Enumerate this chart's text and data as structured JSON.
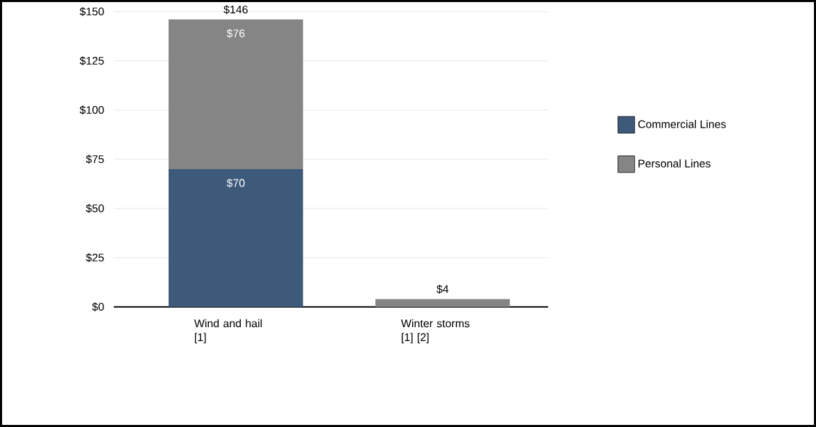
{
  "chart_data": {
    "type": "bar",
    "stacked": true,
    "categories": [
      "Wind and hail [1]",
      "Winter storms [1] [2]"
    ],
    "series": [
      {
        "name": "Commercial Lines",
        "color": "#3e5a7b",
        "values": [
          70,
          null
        ],
        "value_labels": [
          "$70",
          null
        ]
      },
      {
        "name": "Personal Lines",
        "color": "#858585",
        "values": [
          76,
          4
        ],
        "value_labels": [
          "$76",
          null
        ]
      }
    ],
    "totals": [
      "$146",
      "$4"
    ],
    "ylim": [
      0,
      150
    ],
    "yticks": [
      {
        "value": 0,
        "label": "$0"
      },
      {
        "value": 25,
        "label": "$25"
      },
      {
        "value": 50,
        "label": "$50"
      },
      {
        "value": 75,
        "label": "$75"
      },
      {
        "value": 100,
        "label": "$100"
      },
      {
        "value": 125,
        "label": "$125"
      },
      {
        "value": 150,
        "label": "$150"
      }
    ],
    "grid": "y",
    "legend": "right"
  }
}
